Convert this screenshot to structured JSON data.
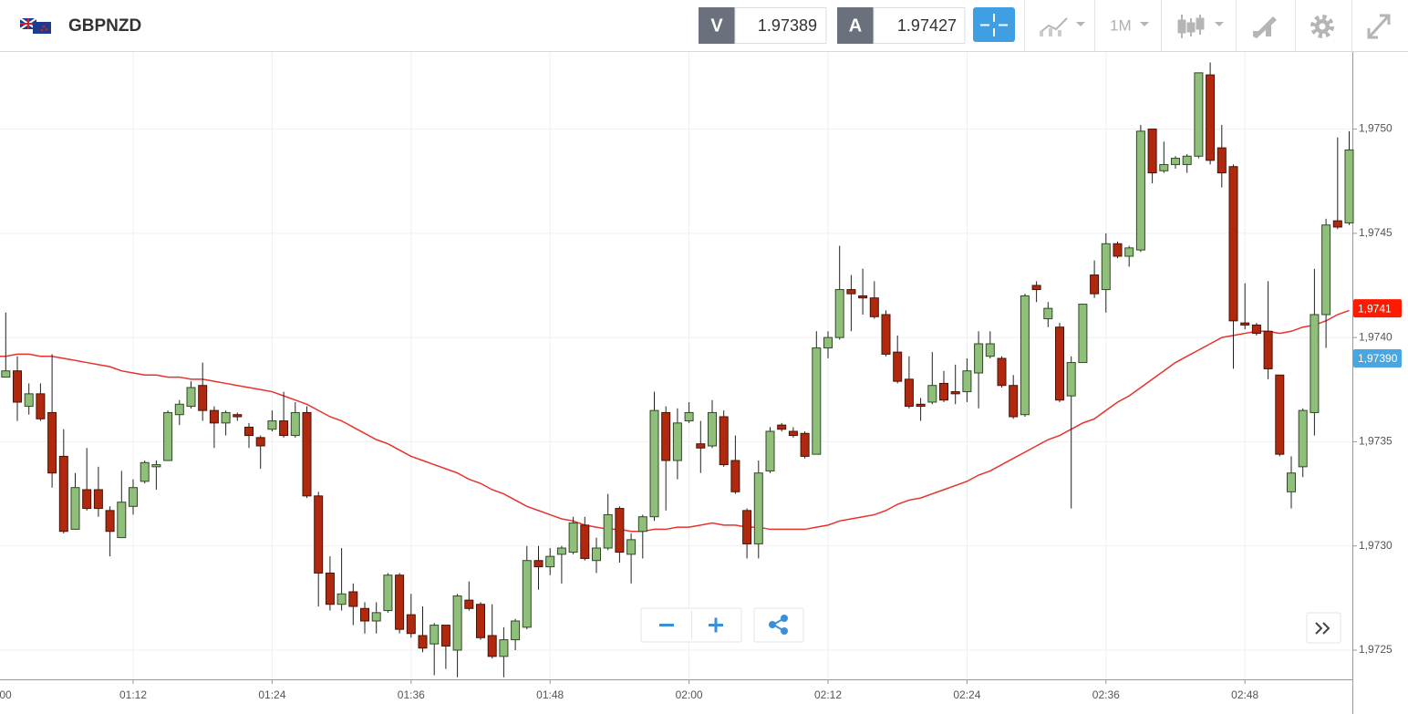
{
  "header": {
    "symbol": "GBPNZD",
    "bid_label": "V",
    "bid": 1.97389,
    "ask_label": "A",
    "ask": 1.97427,
    "timeframe": "1M"
  },
  "chart_data": {
    "type": "candlestick",
    "categories": [
      "00",
      null,
      null,
      null,
      null,
      null,
      null,
      null,
      null,
      null,
      null,
      null,
      "01:12",
      null,
      null,
      null,
      null,
      null,
      null,
      null,
      null,
      null,
      null,
      null,
      "01:24",
      null,
      null,
      null,
      null,
      null,
      null,
      null,
      null,
      null,
      null,
      null,
      "01:36",
      null,
      null,
      null,
      null,
      null,
      null,
      null,
      null,
      null,
      null,
      null,
      "01:48",
      null,
      null,
      null,
      null,
      null,
      null,
      null,
      null,
      null,
      null,
      null,
      "02:00",
      null,
      null,
      null,
      null,
      null,
      null,
      null,
      null,
      null,
      null,
      null,
      "02:12",
      null,
      null,
      null,
      null,
      null,
      null,
      null,
      null,
      null,
      null,
      null,
      "02:24",
      null,
      null,
      null,
      null,
      null,
      null,
      null,
      null,
      null,
      null,
      null,
      "02:36",
      null,
      null,
      null,
      null,
      null,
      null,
      null,
      null,
      null,
      null,
      null,
      "02:48",
      null,
      null,
      null,
      null,
      null,
      null,
      null,
      null,
      null
    ],
    "open": [
      null,
      1.97381,
      1.97384,
      1.97367,
      1.97373,
      1.97364,
      1.97343,
      1.97308,
      1.97327,
      1.97327,
      1.97317,
      1.97304,
      1.97319,
      1.97331,
      1.97338,
      1.97341,
      1.97363,
      1.97367,
      1.97377,
      1.97365,
      1.97359,
      1.97363,
      1.97357,
      1.97352,
      1.97356,
      1.9736,
      1.97353,
      1.97364,
      1.97324,
      1.97287,
      1.97272,
      1.97278,
      1.9727,
      1.97264,
      1.97269,
      1.97286,
      1.97267,
      1.97257,
      1.97253,
      1.97262,
      1.9725,
      1.97274,
      1.97272,
      1.97257,
      1.97247,
      1.97255,
      1.97261,
      1.97293,
      1.9729,
      1.97296,
      1.97297,
      1.9731,
      1.97293,
      1.97299,
      1.97318,
      1.97296,
      1.97307,
      1.97314,
      1.97364,
      1.97341,
      1.9736,
      1.97349,
      1.97348,
      1.97362,
      1.97341,
      1.97317,
      1.97301,
      1.97336,
      1.97358,
      1.97355,
      1.97354,
      1.97344,
      1.97395,
      1.974,
      1.97423,
      1.9742,
      1.97419,
      1.97411,
      1.97393,
      1.9738,
      1.97368,
      1.97369,
      1.97378,
      1.97374,
      1.97374,
      1.97383,
      1.97391,
      1.9739,
      1.97377,
      1.97363,
      1.97425,
      1.97409,
      1.97405,
      1.97372,
      1.97388,
      1.9743,
      1.97423,
      1.97445,
      1.97439,
      1.97442,
      1.975,
      1.9748,
      1.97483,
      1.97483,
      1.97487,
      1.97526,
      1.97491,
      1.97482,
      1.97407,
      1.97406,
      1.97403,
      1.97382,
      1.97326,
      1.97338,
      1.97364,
      1.97411,
      1.97456,
      1.97455
    ],
    "high": [
      null,
      1.97412,
      1.97391,
      1.97378,
      1.97378,
      1.97392,
      1.97356,
      1.97335,
      1.97347,
      1.97338,
      1.97319,
      1.97336,
      1.97332,
      1.97341,
      1.97341,
      1.97365,
      1.9737,
      1.97379,
      1.97388,
      1.97367,
      1.97365,
      1.97364,
      1.97359,
      1.97353,
      1.97365,
      1.97374,
      1.97369,
      1.97367,
      1.97326,
      1.97295,
      1.97299,
      1.97282,
      1.97273,
      1.97273,
      1.97287,
      1.97287,
      1.97277,
      1.97271,
      1.97263,
      1.97262,
      1.97277,
      1.97283,
      1.97273,
      1.97272,
      1.97261,
      1.97265,
      1.973,
      1.973,
      1.97299,
      1.973,
      1.97314,
      1.97314,
      1.97304,
      1.97325,
      1.97319,
      1.97306,
      1.97315,
      1.97374,
      1.97367,
      1.97366,
      1.97369,
      1.9736,
      1.9737,
      1.97365,
      1.97353,
      1.97318,
      1.97341,
      1.97357,
      1.97359,
      1.97357,
      1.97355,
      1.97403,
      1.97403,
      1.97444,
      1.9743,
      1.97433,
      1.97427,
      1.97413,
      1.97401,
      1.97391,
      1.97371,
      1.97393,
      1.97384,
      1.97387,
      1.9739,
      1.97403,
      1.97403,
      1.97391,
      1.97382,
      1.97421,
      1.97427,
      1.97417,
      1.97407,
      1.97391,
      1.97416,
      1.97437,
      1.9745,
      1.97446,
      1.97444,
      1.97502,
      1.975,
      1.97494,
      1.97487,
      1.97488,
      1.97527,
      1.97532,
      1.97502,
      1.97483,
      1.97426,
      1.97407,
      1.97427,
      1.97382,
      1.97343,
      1.97366,
      1.97433,
      1.97457,
      1.97496,
      1.97499
    ],
    "low": [
      null,
      1.97381,
      1.9736,
      1.97363,
      1.9736,
      1.97328,
      1.97306,
      1.97308,
      1.97317,
      1.97314,
      1.97295,
      1.97304,
      1.97315,
      1.9733,
      1.97327,
      1.97341,
      1.97358,
      1.97366,
      1.9736,
      1.97347,
      1.97353,
      1.9736,
      1.97347,
      1.97337,
      1.97355,
      1.97352,
      1.97352,
      1.97323,
      1.97271,
      1.97269,
      1.97269,
      1.97262,
      1.97258,
      1.97258,
      1.97268,
      1.97258,
      1.97256,
      1.97249,
      1.97238,
      1.97241,
      1.97237,
      1.97269,
      1.97255,
      1.97246,
      1.97237,
      1.9725,
      1.9726,
      1.97279,
      1.97286,
      1.97282,
      1.97296,
      1.97293,
      1.97287,
      1.97298,
      1.97292,
      1.97282,
      1.97294,
      1.97312,
      1.97317,
      1.97332,
      1.97359,
      1.97335,
      1.97347,
      1.97338,
      1.97325,
      1.97294,
      1.97294,
      1.97335,
      1.97355,
      1.97352,
      1.97342,
      1.97344,
      1.9739,
      1.97399,
      1.97403,
      1.97411,
      1.97409,
      1.97391,
      1.97378,
      1.97366,
      1.9736,
      1.97368,
      1.97369,
      1.97368,
      1.97369,
      1.97366,
      1.9739,
      1.97376,
      1.97361,
      1.97362,
      1.97417,
      1.97405,
      1.97369,
      1.97318,
      1.97388,
      1.97419,
      1.97412,
      1.97438,
      1.97434,
      1.97441,
      1.97474,
      1.97479,
      1.97481,
      1.97479,
      1.97486,
      1.97483,
      1.97472,
      1.97385,
      1.97404,
      1.97401,
      1.9738,
      1.97343,
      1.97318,
      1.97333,
      1.97353,
      1.97395,
      1.97452,
      1.97454
    ],
    "close": [
      null,
      1.97384,
      1.97369,
      1.97373,
      1.97361,
      1.97335,
      1.97307,
      1.97328,
      1.97318,
      1.97318,
      1.97307,
      1.97321,
      1.97328,
      1.9734,
      1.97339,
      1.97364,
      1.97368,
      1.97376,
      1.97365,
      1.97359,
      1.97364,
      1.97362,
      1.97353,
      1.97348,
      1.9736,
      1.97353,
      1.97364,
      1.97324,
      1.97287,
      1.97272,
      1.97277,
      1.97271,
      1.97264,
      1.97268,
      1.97286,
      1.9726,
      1.97258,
      1.97251,
      1.97262,
      1.97252,
      1.97276,
      1.9727,
      1.97256,
      1.97247,
      1.97255,
      1.97264,
      1.97293,
      1.9729,
      1.97295,
      1.97299,
      1.97311,
      1.97294,
      1.97299,
      1.97315,
      1.97297,
      1.97303,
      1.97314,
      1.97365,
      1.97341,
      1.97359,
      1.97364,
      1.97347,
      1.97364,
      1.97339,
      1.97326,
      1.97301,
      1.97335,
      1.97355,
      1.97356,
      1.97353,
      1.97343,
      1.97395,
      1.974,
      1.97423,
      1.97421,
      1.97419,
      1.9741,
      1.97392,
      1.97379,
      1.97367,
      1.97367,
      1.97377,
      1.9737,
      1.97373,
      1.97384,
      1.97397,
      1.97397,
      1.97377,
      1.97362,
      1.9742,
      1.97423,
      1.97414,
      1.9737,
      1.97388,
      1.97416,
      1.97421,
      1.97445,
      1.97439,
      1.97443,
      1.97499,
      1.97479,
      1.97483,
      1.97486,
      1.97487,
      1.97527,
      1.97485,
      1.97479,
      1.97408,
      1.97406,
      1.97402,
      1.97385,
      1.97344,
      1.97335,
      1.97365,
      1.97411,
      1.97454,
      1.97453,
      1.9749
    ],
    "up_color": "#8fbf7a",
    "down_color": "#b0290f",
    "moving_average": {
      "color": "#e8322b",
      "values": [
        1.97391,
        1.97391,
        1.97392,
        1.97392,
        1.97391,
        1.97391,
        1.9739,
        1.97389,
        1.97388,
        1.97387,
        1.97386,
        1.97384,
        1.97383,
        1.97382,
        1.97382,
        1.97381,
        1.97381,
        1.9738,
        1.9738,
        1.97379,
        1.97378,
        1.97377,
        1.97376,
        1.97375,
        1.97374,
        1.97372,
        1.9737,
        1.97368,
        1.97365,
        1.97362,
        1.9736,
        1.97357,
        1.97354,
        1.97351,
        1.97349,
        1.97346,
        1.97343,
        1.97341,
        1.97339,
        1.97337,
        1.97335,
        1.97332,
        1.9733,
        1.97327,
        1.97325,
        1.97322,
        1.97319,
        1.97317,
        1.97315,
        1.97313,
        1.97312,
        1.9731,
        1.97309,
        1.97308,
        1.97308,
        1.97307,
        1.97307,
        1.97308,
        1.97308,
        1.97309,
        1.97309,
        1.9731,
        1.97311,
        1.9731,
        1.9731,
        1.97309,
        1.97309,
        1.97308,
        1.97308,
        1.97308,
        1.97308,
        1.97309,
        1.9731,
        1.97312,
        1.97313,
        1.97314,
        1.97315,
        1.97317,
        1.9732,
        1.97322,
        1.97323,
        1.97325,
        1.97327,
        1.97329,
        1.97331,
        1.97334,
        1.97336,
        1.97339,
        1.97342,
        1.97345,
        1.97348,
        1.97351,
        1.97353,
        1.97356,
        1.97359,
        1.97361,
        1.97365,
        1.97369,
        1.97372,
        1.97376,
        1.9738,
        1.97384,
        1.97388,
        1.97391,
        1.97394,
        1.97397,
        1.974,
        1.97401,
        1.97402,
        1.97403,
        1.97403,
        1.97402,
        1.97403,
        1.97405,
        1.97406,
        1.97408,
        1.97411,
        1.97413
      ]
    },
    "ylim": [
      1.97236,
      1.97537
    ],
    "yticks": [
      {
        "value": 1.975,
        "label": "1,9750"
      },
      {
        "value": 1.9745,
        "label": "1,9745"
      },
      {
        "value": 1.974,
        "label": "1,9740"
      },
      {
        "value": 1.9735,
        "label": "1,9735"
      },
      {
        "value": 1.973,
        "label": "1,9730"
      },
      {
        "value": 1.9725,
        "label": "1,9725"
      }
    ],
    "grid": true,
    "price_markers": [
      {
        "value": 1.97414,
        "label": "1,9741",
        "color": "#ff1a00"
      },
      {
        "value": 1.9739,
        "label": "1,97390",
        "color": "#4aa6e0"
      }
    ]
  }
}
